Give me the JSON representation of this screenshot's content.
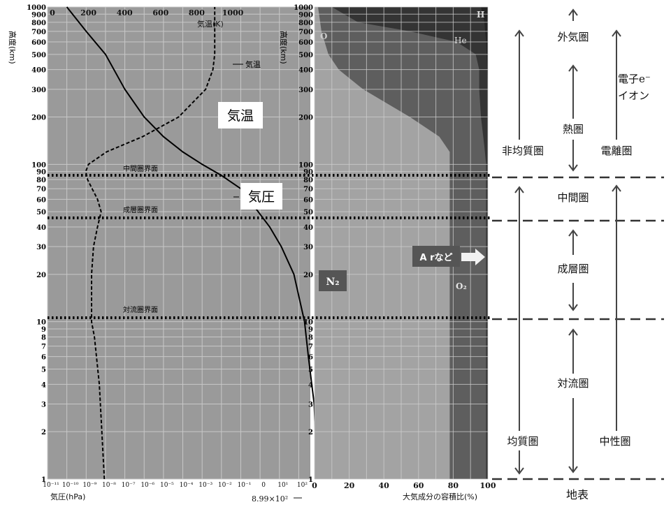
{
  "chart_data": [
    {
      "type": "line",
      "panel": "left",
      "ylabel": "高度(km)",
      "y_scale": "log",
      "ylim": [
        1,
        1000
      ],
      "y_ticks": [
        1,
        2,
        3,
        4,
        5,
        6,
        7,
        8,
        9,
        10,
        20,
        30,
        40,
        50,
        60,
        70,
        80,
        90,
        100,
        200,
        300,
        400,
        500,
        600,
        700,
        800,
        900,
        1000
      ],
      "x_top_label": "気温(K)",
      "x_top_ticks": [
        "0",
        "200",
        "400",
        "600",
        "800",
        "1000"
      ],
      "x_top_lim": [
        0,
        1000
      ],
      "x_bottom_label": "気圧(hPa)",
      "x_bottom_ticks": [
        "10⁻¹¹",
        "10⁻¹⁰",
        "10⁻⁹",
        "10⁻⁸",
        "10⁻⁷",
        "10⁻⁶",
        "10⁻⁵",
        "10⁻⁴",
        "10⁻³",
        "10⁻²",
        "10⁻¹",
        "0",
        "10¹",
        "10²"
      ],
      "x_bottom_lim_log10": [
        -11,
        2.6
      ],
      "pressure_note": "8.99×10²",
      "series": [
        {
          "name": "気温",
          "axis": "top",
          "style": "dashed",
          "points": [
            [
              288,
              1
            ],
            [
              260,
              4
            ],
            [
              233,
              8
            ],
            [
              217,
              10
            ],
            [
              217,
              20
            ],
            [
              228,
              30
            ],
            [
              250,
              40
            ],
            [
              270,
              50
            ],
            [
              250,
              60
            ],
            [
              220,
              70
            ],
            [
              195,
              80
            ],
            [
              185,
              90
            ],
            [
              200,
              100
            ],
            [
              300,
              120
            ],
            [
              500,
              150
            ],
            [
              700,
              200
            ],
            [
              850,
              300
            ],
            [
              890,
              400
            ],
            [
              900,
              500
            ],
            [
              900,
              1000
            ]
          ]
        },
        {
          "name": "気圧",
          "axis": "bottom",
          "style": "solid",
          "points": [
            [
              2.95,
              1
            ],
            [
              2.8,
              3
            ],
            [
              2.5,
              6
            ],
            [
              2.3,
              10
            ],
            [
              1.75,
              20
            ],
            [
              1.1,
              30
            ],
            [
              0.5,
              40
            ],
            [
              -0.1,
              50
            ],
            [
              -1,
              70
            ],
            [
              -2,
              85
            ],
            [
              -3,
              100
            ],
            [
              -4,
              120
            ],
            [
              -5,
              150
            ],
            [
              -6,
              200
            ],
            [
              -7,
              300
            ],
            [
              -8,
              500
            ],
            [
              -9,
              700
            ],
            [
              -10,
              1000
            ]
          ]
        }
      ],
      "annotations": [
        {
          "text": "気温",
          "leader": true
        },
        {
          "text": "気温",
          "boxed": true
        },
        {
          "text": "気圧",
          "boxed": true
        },
        {
          "text": "中間圏界面",
          "altitude": 85
        },
        {
          "text": "成層圏界面",
          "altitude": 46
        },
        {
          "text": "対流圏界面",
          "altitude": 10.5
        }
      ]
    },
    {
      "type": "area",
      "panel": "right",
      "ylabel": "高度(km)",
      "y_scale": "log",
      "ylim": [
        1,
        1000
      ],
      "xlabel": "大気成分の容積比(%)",
      "xlim": [
        0,
        100
      ],
      "x_ticks": [
        "0",
        "20",
        "40",
        "60",
        "80",
        "100"
      ],
      "series": [
        {
          "name": "N₂",
          "boundary_x_at_altitude": [
            [
              78,
              1
            ],
            [
              78,
              100
            ],
            [
              78,
              120
            ],
            [
              72,
              150
            ],
            [
              55,
              200
            ],
            [
              28,
              300
            ],
            [
              14,
              400
            ],
            [
              8,
              500
            ],
            [
              4,
              700
            ],
            [
              2,
              1000
            ]
          ]
        },
        {
          "name": "O₂",
          "boundary_x_at_altitude": [
            [
              99,
              1
            ],
            [
              99,
              100
            ],
            [
              98,
              130
            ],
            [
              96,
              200
            ],
            [
              95,
              300
            ],
            [
              95,
              400
            ],
            [
              93,
              500
            ],
            [
              82,
              600
            ],
            [
              55,
              700
            ],
            [
              25,
              800
            ],
            [
              10,
              1000
            ]
          ]
        },
        {
          "name": "O",
          "boundary_x_at_altitude": [
            [
              100,
              1
            ],
            [
              100,
              150
            ],
            [
              100,
              300
            ],
            [
              99,
              600
            ],
            [
              98,
              800
            ],
            [
              97,
              900
            ],
            [
              96,
              1000
            ]
          ]
        },
        {
          "name": "He"
        },
        {
          "name": "H"
        }
      ],
      "labels": [
        "H",
        "O",
        "He",
        "N₂",
        "O₂"
      ],
      "arrow_label": "A rなど"
    }
  ],
  "layers": {
    "right_column": [
      "外気圏",
      "熱圏",
      "中間圏",
      "成層圏",
      "対流圏"
    ],
    "homogeneity": [
      "非均質圏",
      "均質圏"
    ],
    "ionization": [
      "電子e⁻",
      "イオン",
      "電離圏",
      "中性圏"
    ],
    "ground": "地表"
  }
}
